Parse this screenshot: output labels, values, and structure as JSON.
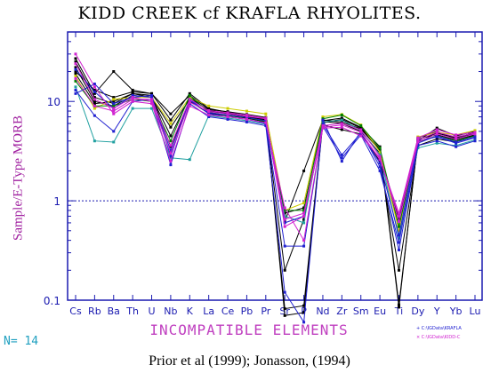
{
  "header": {
    "title": "KIDD CREEK cf KRAFLA RHYOLITES."
  },
  "footer": {
    "source": "Prior et al (1999); Jonasson, (1994)",
    "n_label": "N= 14"
  },
  "legend": [
    {
      "marker": "+",
      "label": "C:\\IGData\\KRAFLA",
      "color": "#2020d0"
    },
    {
      "marker": "×",
      "label": "C:\\IGData\\KIDD-C",
      "color": "#d020d0"
    }
  ],
  "colors": {
    "frame": "#1a1ab0",
    "ylabel": "#a020a0",
    "xlabel": "#c040c0",
    "grid_line": "#1a1ab0"
  },
  "chart_data": {
    "type": "line",
    "title": "KIDD CREEK cf KRAFLA RHYOLITES.",
    "xlabel": "INCOMPATIBLE ELEMENTS",
    "ylabel": "Sample/E-Type MORB",
    "y_scale": "log",
    "ylim": [
      0.1,
      50
    ],
    "y_ticks": [
      "0.1",
      "1",
      "10"
    ],
    "reference_line": 1,
    "categories": [
      "Cs",
      "Rb",
      "Ba",
      "Th",
      "U",
      "Nb",
      "K",
      "La",
      "Ce",
      "Pb",
      "Pr",
      "Sr",
      "P",
      "Nd",
      "Zr",
      "Sm",
      "Eu",
      "Ti",
      "Dy",
      "Y",
      "Yb",
      "Lu"
    ],
    "series": [
      {
        "color": "#000000",
        "values": [
          27,
          12,
          20,
          13,
          12,
          6.5,
          12,
          8.5,
          7.8,
          7.3,
          6.8,
          0.62,
          2.0,
          6.5,
          6.2,
          5.3,
          3.2,
          0.55,
          4.0,
          5.4,
          4.5,
          5.0
        ]
      },
      {
        "color": "#000000",
        "values": [
          25,
          11,
          9.5,
          12,
          11,
          4.5,
          11,
          8.0,
          7.5,
          7.0,
          6.5,
          0.75,
          0.85,
          6.3,
          6.0,
          5.0,
          3.0,
          0.65,
          4.3,
          5.0,
          4.2,
          4.8
        ]
      },
      {
        "color": "#000000",
        "values": [
          22,
          10,
          9,
          11.5,
          11,
          5.5,
          10.5,
          8.2,
          7.6,
          7.1,
          6.6,
          0.082,
          0.088,
          6.4,
          6.8,
          5.5,
          3.5,
          0.09,
          4.1,
          4.8,
          4.3,
          4.9
        ]
      },
      {
        "color": "#000000",
        "values": [
          20,
          13,
          11,
          12.5,
          12,
          7.5,
          11.5,
          8.3,
          7.9,
          7.4,
          6.9,
          0.07,
          0.075,
          6.1,
          6.6,
          5.4,
          3.3,
          0.085,
          4.2,
          4.6,
          4.1,
          4.6
        ]
      },
      {
        "color": "#000000",
        "values": [
          19,
          9.5,
          10,
          12,
          11.5,
          3.5,
          10,
          7.6,
          7.2,
          6.8,
          6.2,
          0.2,
          0.65,
          5.8,
          5.2,
          4.7,
          2.5,
          0.2,
          3.6,
          4.2,
          3.9,
          4.6
        ]
      },
      {
        "color": "#cccc00",
        "values": [
          18,
          8.5,
          10.5,
          11,
          11,
          6.0,
          11,
          9.0,
          8.5,
          8.0,
          7.5,
          0.8,
          0.95,
          7.0,
          7.4,
          5.8,
          3.1,
          0.5,
          4.4,
          4.9,
          4.6,
          5.1
        ]
      },
      {
        "color": "#008000",
        "values": [
          16,
          9,
          9,
          10.5,
          10,
          4.0,
          11.5,
          7.8,
          7.2,
          6.9,
          6.3,
          0.8,
          0.8,
          6.7,
          7.3,
          5.7,
          3.4,
          0.55,
          3.9,
          4.5,
          4.0,
          4.5
        ]
      },
      {
        "color": "#20a0a0",
        "values": [
          14,
          4.0,
          3.9,
          8.5,
          8.5,
          2.7,
          2.6,
          7.2,
          6.8,
          6.4,
          5.9,
          0.7,
          0.6,
          6.2,
          6.5,
          5.1,
          2.9,
          0.42,
          3.4,
          3.8,
          3.6,
          4.1
        ]
      },
      {
        "color": "#2020d0",
        "values": [
          13,
          7.2,
          5.0,
          10,
          10.5,
          2.3,
          9.5,
          7.0,
          6.6,
          6.2,
          5.7,
          0.12,
          0.06,
          6.5,
          2.5,
          5.0,
          2.2,
          0.32,
          3.6,
          4.0,
          3.5,
          4.0
        ]
      },
      {
        "color": "#2020d0",
        "values": [
          12,
          15,
          9.5,
          11,
          11.5,
          2.8,
          10.5,
          7.5,
          7.0,
          6.6,
          6.0,
          0.35,
          0.35,
          5.6,
          2.7,
          4.6,
          2.0,
          0.38,
          3.8,
          4.5,
          3.9,
          4.4
        ]
      },
      {
        "color": "#2020d0",
        "values": [
          21,
          12.5,
          8.5,
          11.5,
          11,
          3.2,
          10.2,
          7.7,
          7.3,
          6.9,
          6.4,
          0.6,
          0.7,
          5.9,
          2.9,
          4.8,
          2.4,
          0.45,
          4.0,
          4.4,
          3.8,
          4.3
        ]
      },
      {
        "color": "#d020d0",
        "values": [
          30,
          14,
          7.5,
          10,
          9.5,
          2.5,
          9.0,
          7.3,
          7.0,
          6.6,
          6.1,
          0.85,
          0.4,
          5.5,
          5.8,
          4.9,
          2.6,
          0.75,
          4.3,
          5.2,
          4.6,
          4.9
        ]
      },
      {
        "color": "#d020d0",
        "values": [
          24,
          10.5,
          8.5,
          11,
          10,
          3.0,
          9.8,
          7.9,
          7.5,
          7.1,
          6.7,
          0.55,
          0.7,
          5.4,
          5.5,
          4.5,
          2.7,
          0.7,
          4.1,
          4.9,
          4.4,
          4.8
        ]
      },
      {
        "color": "#d020d0",
        "values": [
          17,
          9,
          8,
          10.5,
          10.5,
          3.6,
          10.5,
          8.1,
          7.7,
          7.3,
          6.8,
          0.65,
          0.75,
          5.7,
          6.0,
          5.2,
          2.8,
          0.62,
          3.9,
          4.7,
          4.2,
          4.7
        ]
      }
    ]
  }
}
